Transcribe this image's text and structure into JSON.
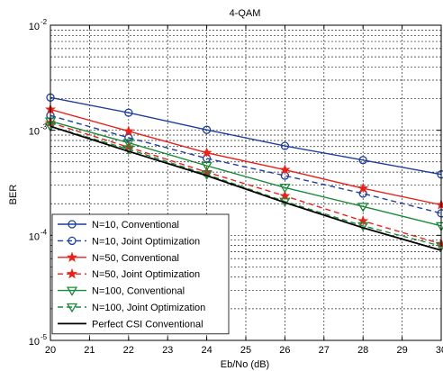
{
  "chart_data": {
    "type": "line",
    "title": "4-QAM",
    "xlabel": "Eb/No (dB)",
    "ylabel": "BER",
    "xlim": [
      20,
      30
    ],
    "ylim": [
      1e-05,
      0.01
    ],
    "yscale": "log",
    "grid": true,
    "legend_position": "bottom-left",
    "x_ticks": [
      "20",
      "21",
      "22",
      "23",
      "24",
      "25",
      "26",
      "27",
      "28",
      "29",
      "30"
    ],
    "y_ticks": [
      {
        "base": "10",
        "exp": "-5",
        "value": 1e-05
      },
      {
        "base": "10",
        "exp": "-4",
        "value": 0.0001
      },
      {
        "base": "10",
        "exp": "-3",
        "value": 0.001
      },
      {
        "base": "10",
        "exp": "-2",
        "value": 0.01
      }
    ],
    "series": [
      {
        "name": "N=10, Conventional",
        "color": "#1f3f9f",
        "dash": "solid",
        "marker": "circle",
        "x": [
          20,
          22,
          24,
          26,
          28,
          30
        ],
        "y": [
          0.00205,
          0.00147,
          0.00101,
          0.00071,
          0.00052,
          0.00038
        ]
      },
      {
        "name": "N=10, Joint Optimization",
        "color": "#1f3f9f",
        "dash": "dashed",
        "marker": "circle",
        "x": [
          20,
          22,
          24,
          26,
          28,
          30
        ],
        "y": [
          0.00138,
          0.00085,
          0.00054,
          0.00037,
          0.00025,
          0.000162
        ]
      },
      {
        "name": "N=50, Conventional",
        "color": "#e8221b",
        "dash": "solid",
        "marker": "star",
        "x": [
          20,
          22,
          24,
          26,
          28,
          30
        ],
        "y": [
          0.00158,
          0.00098,
          0.00061,
          0.00042,
          0.00028,
          0.000195
        ]
      },
      {
        "name": "N=50, Joint Optimization",
        "color": "#e8221b",
        "dash": "dashed",
        "marker": "star",
        "x": [
          20,
          22,
          24,
          26,
          28,
          30
        ],
        "y": [
          0.00118,
          0.00069,
          0.0004,
          0.000237,
          0.000137,
          8.3e-05
        ]
      },
      {
        "name": "N=100, Conventional",
        "color": "#1a8a3a",
        "dash": "solid",
        "marker": "triangle-down",
        "x": [
          20,
          22,
          24,
          26,
          28,
          30
        ],
        "y": [
          0.00122,
          0.00076,
          0.00046,
          0.000285,
          0.000188,
          0.000123
        ]
      },
      {
        "name": "N=100, Joint Optimization",
        "color": "#1a8a3a",
        "dash": "dashed",
        "marker": "triangle-down",
        "x": [
          20,
          22,
          24,
          26,
          28,
          30
        ],
        "y": [
          0.00109,
          0.00066,
          0.00038,
          0.00021,
          0.000123,
          7.9e-05
        ]
      },
      {
        "name": "Perfect CSI Conventional",
        "color": "#000000",
        "dash": "solid",
        "marker": "none",
        "x": [
          20,
          22,
          24,
          26,
          28,
          30
        ],
        "y": [
          0.00109,
          0.00063,
          0.00037,
          0.000205,
          0.000118,
          7.2e-05
        ]
      }
    ]
  }
}
